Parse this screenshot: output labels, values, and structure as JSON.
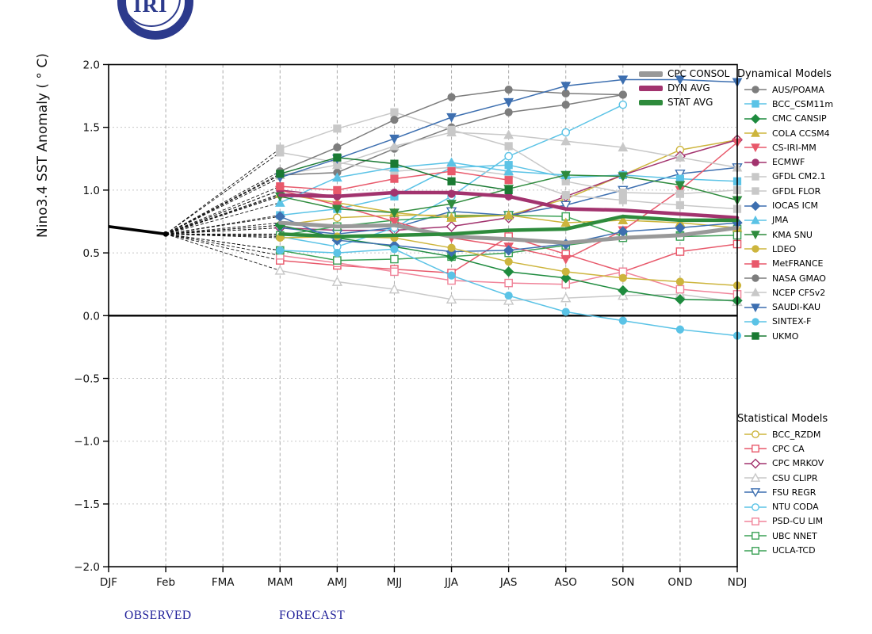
{
  "logo": {
    "text": "IRI"
  },
  "axes": {
    "y_label": "Nino3.4 SST Anomaly ( ° C)",
    "x_ticks": [
      "DJF",
      "Feb",
      "FMA",
      "MAM",
      "AMJ",
      "MJJ",
      "JJA",
      "JAS",
      "ASO",
      "SON",
      "OND",
      "NDJ"
    ],
    "y_ticks": [
      "2.0",
      "1.5",
      "1.0",
      "0.5",
      "0.0",
      "−0.5",
      "−1.0",
      "−1.5",
      "−2.0"
    ],
    "y_min": -2.0,
    "y_max": 2.0
  },
  "annotations": {
    "observed_label": "OBSERVED",
    "forecast_label": "FORECAST",
    "label_color": "#1f1f99"
  },
  "legend": {
    "dynamical_title": "Dynamical Models",
    "statistical_title": "Statistical Models"
  },
  "chart_data": {
    "type": "line",
    "title": "IRI ENSO prediction plume",
    "x_categories": [
      "DJF",
      "Feb",
      "FMA",
      "MAM",
      "AMJ",
      "MJJ",
      "JJA",
      "JAS",
      "ASO",
      "SON",
      "OND",
      "NDJ"
    ],
    "ylim": [
      -2.0,
      2.0
    ],
    "grid": "dashed",
    "observed": {
      "x_indices": [
        0,
        1
      ],
      "values": [
        0.71,
        0.65
      ]
    },
    "forecast_start_index": 3,
    "averages": [
      {
        "name": "CPC CONSOL",
        "color": "#999999",
        "width": 5,
        "values": [
          0.74,
          0.71,
          0.72,
          0.63,
          0.61,
          0.58,
          0.62,
          0.64,
          0.7
        ]
      },
      {
        "name": "DYN AVG",
        "color": "#a2336e",
        "width": 4.5,
        "values": [
          0.96,
          0.95,
          0.98,
          0.98,
          0.95,
          0.85,
          0.84,
          0.81,
          0.78
        ]
      },
      {
        "name": "STAT AVG",
        "color": "#2e8b3c",
        "width": 4.5,
        "values": [
          0.65,
          0.63,
          0.64,
          0.65,
          0.68,
          0.69,
          0.79,
          0.76,
          0.76
        ]
      }
    ],
    "dynamical_models": [
      {
        "name": "AUS/POAMA",
        "color": "#7d7d7d",
        "marker": "circle",
        "open": false,
        "values": [
          1.12,
          1.14,
          1.33,
          1.5,
          1.62,
          1.68,
          1.76,
          null,
          null
        ]
      },
      {
        "name": "BCC_CSM11m",
        "color": "#5bc3e6",
        "marker": "square",
        "open": false,
        "values": [
          0.8,
          0.85,
          0.95,
          1.18,
          1.2,
          1.1,
          1.12,
          1.09,
          1.07
        ]
      },
      {
        "name": "CMC CANSIP",
        "color": "#1e8b3e",
        "marker": "diamond",
        "open": false,
        "values": [
          0.72,
          0.62,
          0.55,
          0.47,
          0.35,
          0.3,
          0.2,
          0.13,
          0.12
        ]
      },
      {
        "name": "COLA CCSM4",
        "color": "#cdb53d",
        "marker": "triangle-up",
        "open": false,
        "values": [
          0.97,
          0.9,
          0.82,
          0.78,
          0.8,
          0.74,
          0.76,
          0.74,
          0.7
        ]
      },
      {
        "name": "CS-IRI-MM",
        "color": "#e8596b",
        "marker": "triangle-down",
        "open": false,
        "values": [
          1.0,
          0.88,
          0.75,
          0.62,
          0.55,
          0.45,
          0.68,
          1.0,
          1.38
        ]
      },
      {
        "name": "ECMWF",
        "color": "#a2336e",
        "marker": "circle",
        "open": false,
        "values": [
          1.0,
          0.95,
          0.98,
          0.97,
          0.95,
          null,
          null,
          null,
          null
        ]
      },
      {
        "name": "GFDL CM2.1",
        "color": "#c8c8c8",
        "marker": "square",
        "open": false,
        "values": [
          1.33,
          1.49,
          1.62,
          1.48,
          1.35,
          1.07,
          0.98,
          0.97,
          1.0
        ]
      },
      {
        "name": "GFDL FLOR",
        "color": "#c8c8c8",
        "marker": "square",
        "open": false,
        "values": [
          1.3,
          1.22,
          1.15,
          1.18,
          1.12,
          0.96,
          0.92,
          0.88,
          0.85
        ]
      },
      {
        "name": "IOCAS ICM",
        "color": "#3d6fb0",
        "marker": "diamond",
        "open": false,
        "values": [
          0.79,
          0.6,
          0.56,
          0.51,
          0.52,
          0.57,
          0.67,
          0.7,
          0.74
        ]
      },
      {
        "name": "JMA",
        "color": "#5bc3e6",
        "marker": "triangle-up",
        "open": false,
        "values": [
          0.9,
          1.1,
          1.18,
          1.22,
          1.15,
          1.12,
          null,
          null,
          null
        ]
      },
      {
        "name": "KMA SNU",
        "color": "#2e8b3d",
        "marker": "triangle-down",
        "open": false,
        "values": [
          0.95,
          0.85,
          0.82,
          0.89,
          1.01,
          1.12,
          1.11,
          1.04,
          0.92
        ]
      },
      {
        "name": "LDEO",
        "color": "#cdb53d",
        "marker": "circle",
        "open": false,
        "values": [
          0.62,
          0.63,
          0.62,
          0.54,
          0.43,
          0.35,
          0.3,
          0.27,
          0.24
        ]
      },
      {
        "name": "MetFRANCE",
        "color": "#e8596b",
        "marker": "square",
        "open": false,
        "values": [
          1.03,
          1.0,
          1.09,
          1.15,
          1.08,
          null,
          null,
          null,
          null
        ]
      },
      {
        "name": "NASA GMAO",
        "color": "#7d7d7d",
        "marker": "circle",
        "open": false,
        "values": [
          1.15,
          1.34,
          1.56,
          1.74,
          1.8,
          1.77,
          1.76,
          null,
          null
        ]
      },
      {
        "name": "NCEP CFSv2",
        "color": "#c8c8c8",
        "marker": "triangle-up",
        "open": false,
        "values": [
          1.12,
          1.2,
          1.35,
          1.46,
          1.44,
          1.39,
          1.34,
          1.26,
          1.18
        ]
      },
      {
        "name": "SAUDI-KAU",
        "color": "#3d6fb0",
        "marker": "triangle-down",
        "open": false,
        "values": [
          1.1,
          1.25,
          1.41,
          1.58,
          1.7,
          1.83,
          1.88,
          1.88,
          1.86
        ]
      },
      {
        "name": "SINTEX-F",
        "color": "#5bc3e6",
        "marker": "circle",
        "open": false,
        "values": [
          0.52,
          0.5,
          0.53,
          0.32,
          0.16,
          0.03,
          -0.04,
          -0.11,
          -0.16
        ]
      },
      {
        "name": "UKMO",
        "color": "#1a7a33",
        "marker": "square",
        "open": false,
        "values": [
          1.13,
          1.26,
          1.21,
          1.07,
          1.0,
          null,
          null,
          null,
          null
        ]
      }
    ],
    "statistical_models": [
      {
        "name": "BCC_RZDM",
        "color": "#cdb53d",
        "marker": "circle",
        "open": true,
        "values": [
          0.72,
          0.78,
          0.8,
          0.8,
          0.8,
          0.93,
          1.12,
          1.32,
          1.4
        ]
      },
      {
        "name": "CPC CA",
        "color": "#e8596b",
        "marker": "square",
        "open": true,
        "values": [
          0.44,
          0.4,
          0.37,
          0.34,
          0.63,
          0.49,
          0.35,
          0.51,
          0.57
        ]
      },
      {
        "name": "CPC MRKOV",
        "color": "#a2336e",
        "marker": "diamond",
        "open": true,
        "values": [
          0.7,
          0.68,
          0.68,
          0.71,
          0.78,
          0.95,
          1.12,
          1.27,
          1.4
        ]
      },
      {
        "name": "CSU CLIPR",
        "color": "#c8c8c8",
        "marker": "triangle-up",
        "open": true,
        "values": [
          0.36,
          0.27,
          0.21,
          0.13,
          0.12,
          0.14,
          0.16,
          0.17,
          0.11
        ]
      },
      {
        "name": "FSU REGR",
        "color": "#3d6fb0",
        "marker": "triangle-down",
        "open": true,
        "values": [
          0.7,
          0.65,
          0.7,
          0.83,
          0.8,
          0.88,
          1.0,
          1.13,
          1.18
        ]
      },
      {
        "name": "NTU CODA",
        "color": "#5bc3e6",
        "marker": "circle",
        "open": true,
        "values": [
          0.63,
          0.55,
          0.7,
          0.95,
          1.27,
          1.46,
          1.68,
          null,
          null
        ]
      },
      {
        "name": "PSD-CU LIM",
        "color": "#f0849a",
        "marker": "square",
        "open": true,
        "values": [
          0.48,
          0.42,
          0.35,
          0.28,
          0.26,
          0.25,
          0.35,
          0.21,
          0.17
        ]
      },
      {
        "name": "UBC NNET",
        "color": "#3aa055",
        "marker": "square",
        "open": true,
        "values": [
          0.64,
          0.71,
          0.76,
          0.79,
          0.8,
          0.79,
          0.63,
          0.64,
          0.69
        ]
      },
      {
        "name": "UCLA-TCD",
        "color": "#3aa055",
        "marker": "square",
        "open": true,
        "values": [
          0.52,
          0.44,
          0.45,
          0.47,
          0.5,
          0.56,
          0.62,
          0.63,
          0.64
        ]
      }
    ]
  }
}
